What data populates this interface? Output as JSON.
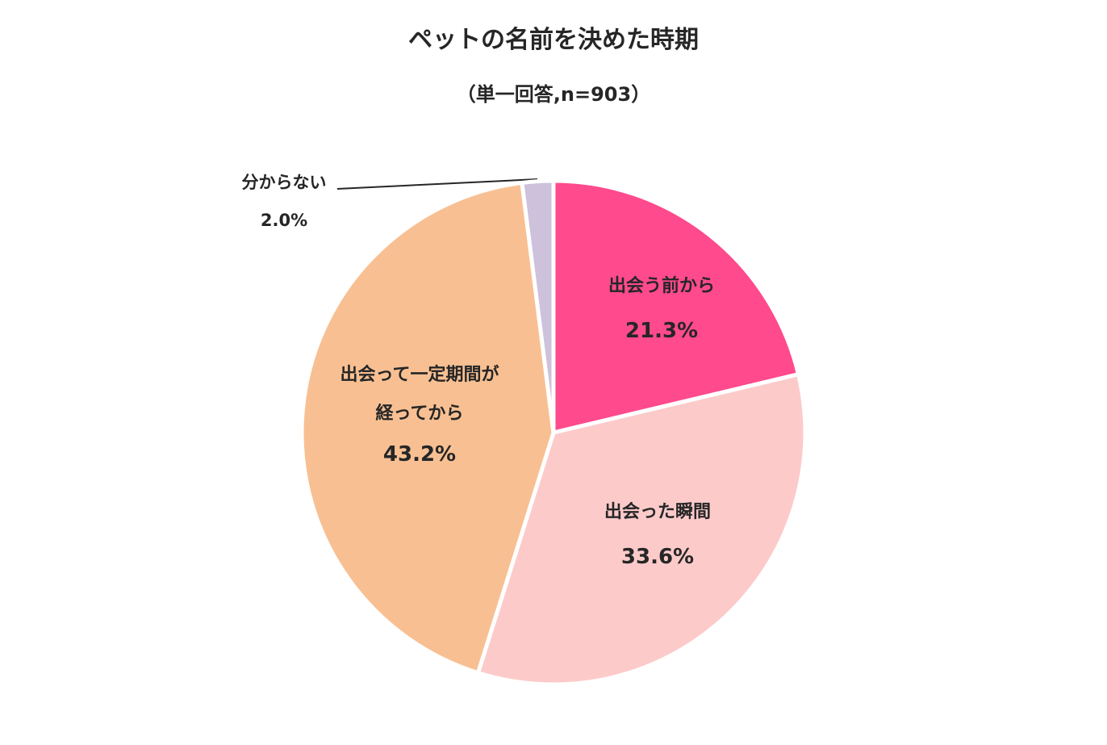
{
  "chart_data": {
    "type": "pie",
    "title": "ペットの名前を決めた時期",
    "subtitle": "（単一回答,n=903）",
    "categories": [
      "出会う前から",
      "出会った瞬間",
      "出会って一定期間が\n経ってから",
      "分からない"
    ],
    "values": [
      21.3,
      33.6,
      43.2,
      2.0
    ],
    "value_labels": [
      "21.3%",
      "33.6%",
      "43.2%",
      "2.0%"
    ],
    "colors": [
      "#ff4a8d",
      "#fdcaca",
      "#f8c092",
      "#cdc1dc"
    ]
  }
}
